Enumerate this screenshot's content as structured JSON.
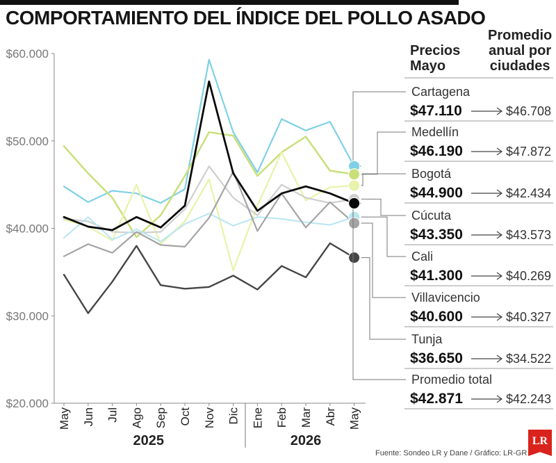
{
  "title": "COMPORTAMIENTO DEL ÍNDICE DEL POLLO ASADO",
  "headers": {
    "precios": "Precios\nMayo",
    "promedio": "Promedio\nanual por\nciudades"
  },
  "source": "Fuente: Sondeo LR y Dane / Gráfico: LR-GR",
  "logo_text": "LR",
  "chart_data": {
    "type": "line",
    "categories": [
      "May",
      "Jun",
      "Jul",
      "Ago",
      "Sep",
      "Oct",
      "Nov",
      "Dic",
      "Ene",
      "Feb",
      "Mar",
      "Abr",
      "May"
    ],
    "year_labels": [
      "2025",
      "2026"
    ],
    "ylim": [
      20000,
      60000
    ],
    "yticks": [
      20000,
      30000,
      40000,
      50000,
      60000
    ],
    "ytick_labels": [
      "$20.000",
      "$30.000",
      "$40.000",
      "$50.000",
      "$60.000"
    ],
    "legend_position": "right",
    "series": [
      {
        "name": "Cartagena",
        "color": "#7fd0e6",
        "width": 2.2,
        "values": [
          44800,
          43000,
          44300,
          44000,
          42900,
          44500,
          59300,
          51000,
          46400,
          52500,
          51200,
          52200,
          47110
        ],
        "price": "$47.110",
        "avg": "$46.708"
      },
      {
        "name": "Medellín",
        "color": "#c9df7a",
        "width": 2.5,
        "values": [
          49400,
          46300,
          43500,
          39000,
          41500,
          46000,
          51000,
          50600,
          46000,
          48700,
          50500,
          46600,
          46190
        ],
        "price": "$46.190",
        "avg": "$47.872"
      },
      {
        "name": "Bogotá",
        "color": "#e8f2aa",
        "width": 2.2,
        "values": [
          41000,
          40200,
          38600,
          45000,
          38200,
          40800,
          45600,
          35200,
          42600,
          48700,
          43200,
          44700,
          44900
        ],
        "price": "$44.900",
        "avg": "$42.434"
      },
      {
        "name": "Cúcuta",
        "color": "#cfcfcf",
        "width": 2.2,
        "values": [
          41100,
          40800,
          39600,
          39500,
          39600,
          42200,
          47100,
          43500,
          41500,
          45000,
          43500,
          42900,
          43350
        ],
        "price": "$43.350",
        "avg": "$43.573"
      },
      {
        "name": "Cali",
        "color": "#b8e6f2",
        "width": 2.0,
        "values": [
          38900,
          41300,
          38700,
          39900,
          38500,
          40500,
          41700,
          40300,
          41300,
          41100,
          40700,
          40400,
          41300
        ],
        "price": "$41.300",
        "avg": "$40.269"
      },
      {
        "name": "Villavicencio",
        "color": "#a4a4a4",
        "width": 2.2,
        "values": [
          36800,
          38200,
          37200,
          39600,
          38100,
          37900,
          41200,
          46500,
          39700,
          44000,
          40100,
          43000,
          40600
        ],
        "price": "$40.600",
        "avg": "$40.327"
      },
      {
        "name": "Tunja",
        "color": "#454545",
        "width": 2.4,
        "values": [
          34700,
          30300,
          33900,
          38000,
          33500,
          33100,
          33300,
          34600,
          33000,
          35700,
          34400,
          38300,
          36650
        ],
        "price": "$36.650",
        "avg": "$34.522"
      },
      {
        "name": "Promedio total",
        "color": "#0a0a0a",
        "width": 2.8,
        "values": [
          41300,
          40200,
          39800,
          41300,
          40100,
          42600,
          56800,
          46300,
          42000,
          44000,
          44800,
          44000,
          42871
        ],
        "price": "$42.871",
        "avg": "$42.243"
      }
    ]
  }
}
